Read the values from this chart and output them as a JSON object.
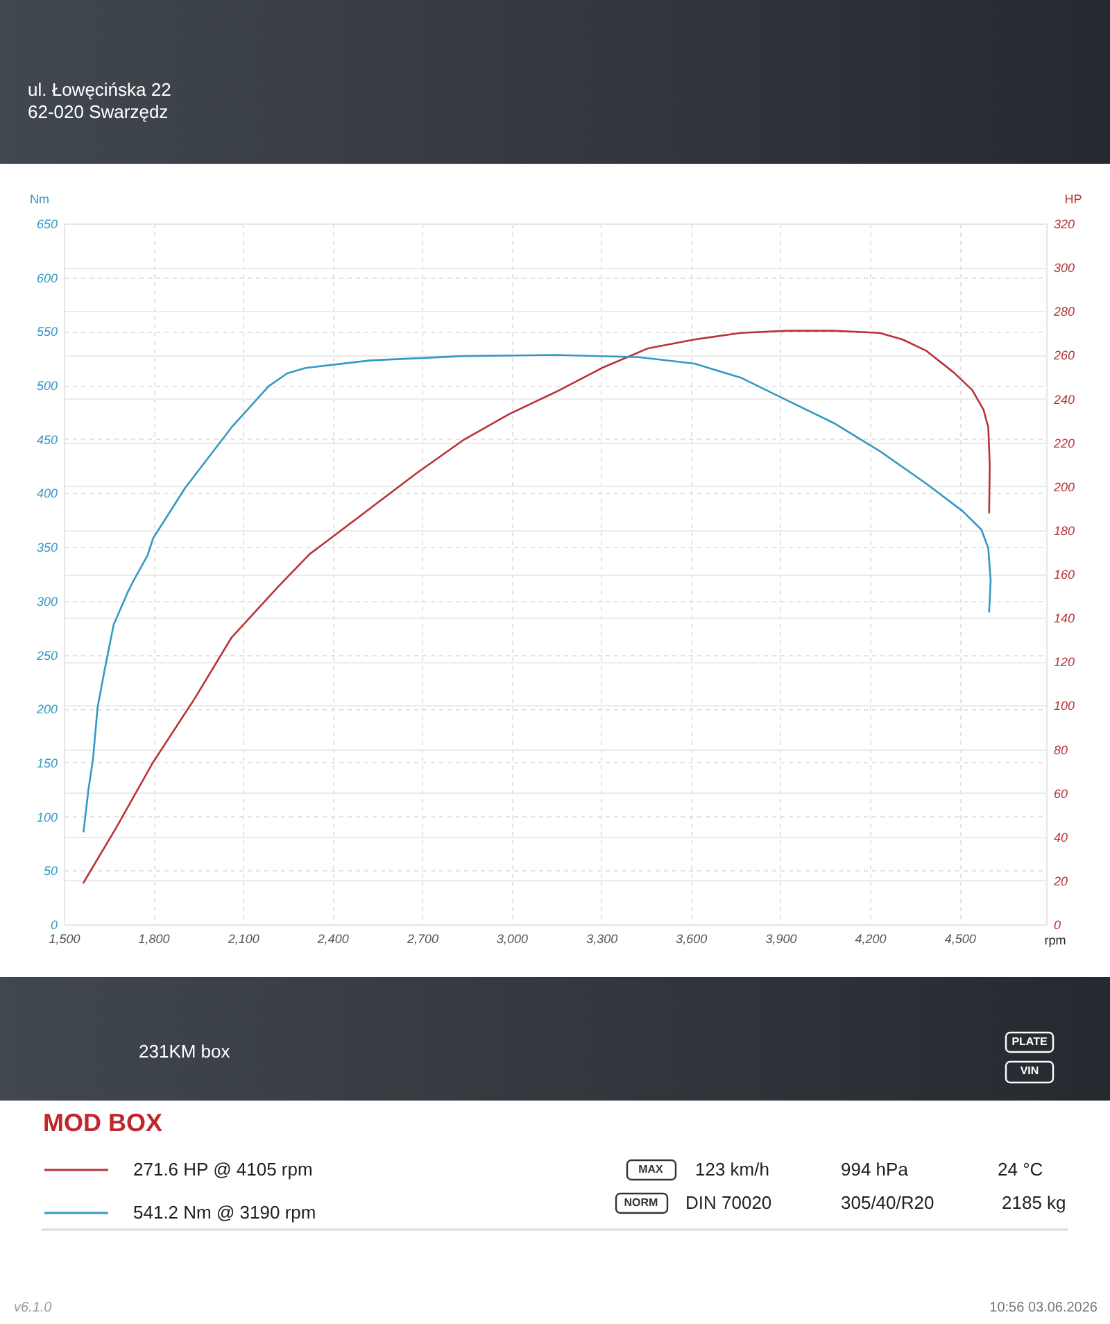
{
  "chart_data": {
    "type": "line",
    "xlabel": "rpm",
    "ylabel": "Nm",
    "y2label": "HP",
    "legend_title": "MOD BOX",
    "xlim": [
      1500,
      4790
    ],
    "xticks": [
      {
        "value": 1500,
        "label": "1,500"
      },
      {
        "value": 1800,
        "label": "1,800"
      },
      {
        "value": 2100,
        "label": "2,100"
      },
      {
        "value": 2400,
        "label": "2,400"
      },
      {
        "value": 2700,
        "label": "2,700"
      },
      {
        "value": 3000,
        "label": "3,000"
      },
      {
        "value": 3300,
        "label": "3,300"
      },
      {
        "value": 3600,
        "label": "3,600"
      },
      {
        "value": 3900,
        "label": "3,900"
      },
      {
        "value": 4200,
        "label": "4,200"
      },
      {
        "value": 4500,
        "label": "4,500"
      }
    ],
    "ylim": [
      0,
      650
    ],
    "yticks": [
      0,
      50,
      100,
      150,
      200,
      250,
      300,
      350,
      400,
      450,
      500,
      550,
      600,
      650
    ],
    "y2lim": [
      0,
      320
    ],
    "y2ticks": [
      0,
      20,
      40,
      60,
      80,
      100,
      120,
      140,
      160,
      180,
      200,
      220,
      240,
      260,
      280,
      300,
      320
    ],
    "grid": true,
    "legend": "bottom left",
    "line_style": "solid",
    "series": [
      {
        "name": "271.6 HP @ 4105 rpm",
        "color": "#b83236",
        "axis": "y2",
        "x": [
          1566,
          1675,
          1799,
          1938,
          2062,
          2217,
          2323,
          2372,
          2527,
          2682,
          2837,
          2992,
          3147,
          3302,
          3457,
          3612,
          3767,
          3922,
          4078,
          4232,
          4309,
          4387,
          4480,
          4542,
          4580,
          4596,
          4601,
          4599
        ],
        "values": [
          19,
          44,
          74,
          103,
          131,
          154,
          169,
          174,
          190,
          206,
          221,
          233,
          243,
          254,
          263,
          267,
          270,
          271,
          271,
          270,
          267,
          262,
          252,
          244,
          235,
          227,
          210,
          188
        ]
      },
      {
        "name": "541.2 Nm @ 3190 rpm",
        "color": "#3399c4",
        "x": [
          1566,
          1582,
          1598,
          1613,
          1636,
          1667,
          1714,
          1734,
          1780,
          1799,
          1907,
          2062,
          2186,
          2248,
          2310,
          2527,
          2837,
          3147,
          3426,
          3612,
          3767,
          3922,
          4078,
          4232,
          4387,
          4511,
          4573,
          4596,
          4604,
          4599
        ],
        "values": [
          86,
          124,
          154,
          201,
          235,
          278,
          308,
          319,
          342,
          358,
          405,
          461,
          499,
          511,
          516,
          523,
          527,
          528,
          526,
          520,
          507,
          486,
          465,
          439,
          409,
          383,
          366,
          349,
          319,
          290
        ]
      }
    ],
    "annotations": [
      "ul. Łowęcińska 22",
      "62-020 Swarzędz",
      "231KM box",
      "PLATE",
      "VIN",
      "MAX",
      "123 km/h",
      "994 hPa",
      "24 °C",
      "NORM",
      "DIN 70020",
      "305/40/R20",
      "2185 kg",
      "v6.1.0",
      "10:56 03.06.2026"
    ]
  }
}
